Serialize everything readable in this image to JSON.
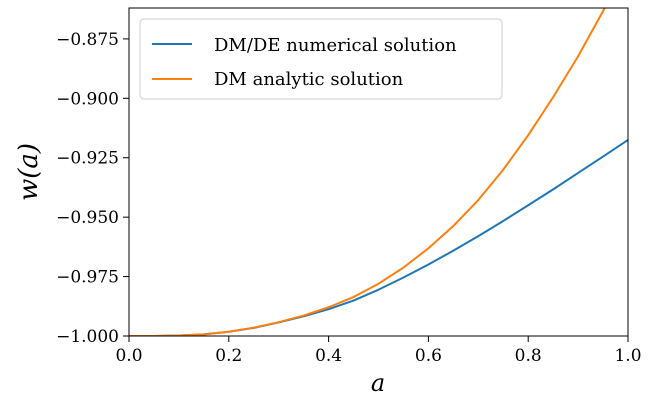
{
  "chart_data": {
    "type": "line",
    "xlabel": "a",
    "ylabel": "w(a)",
    "xlim": [
      0.0,
      1.0
    ],
    "ylim": [
      -1.0,
      -0.862
    ],
    "xticks": [
      "0.0",
      "0.2",
      "0.4",
      "0.6",
      "0.8",
      "1.0"
    ],
    "yticks": [
      "−1.000",
      "−0.975",
      "−0.950",
      "−0.925",
      "−0.900",
      "−0.875"
    ],
    "grid": false,
    "legend_position": "top-left",
    "series": [
      {
        "name": "DM/DE numerical solution",
        "color": "#1f77b4",
        "x": [
          0.0,
          0.05,
          0.1,
          0.15,
          0.2,
          0.25,
          0.3,
          0.35,
          0.4,
          0.45,
          0.5,
          0.55,
          0.6,
          0.65,
          0.7,
          0.75,
          0.8,
          0.85,
          0.9,
          0.95,
          1.0
        ],
        "y": [
          -1.0,
          -1.0,
          -0.9998,
          -0.9993,
          -0.9982,
          -0.9966,
          -0.9943,
          -0.9917,
          -0.9887,
          -0.9851,
          -0.9805,
          -0.9754,
          -0.9699,
          -0.9641,
          -0.958,
          -0.9516,
          -0.945,
          -0.9383,
          -0.9314,
          -0.9245,
          -0.9175
        ]
      },
      {
        "name": "DM analytic solution",
        "color": "#ff7f0e",
        "x": [
          0.0,
          0.05,
          0.1,
          0.15,
          0.2,
          0.25,
          0.3,
          0.35,
          0.4,
          0.45,
          0.5,
          0.55,
          0.6,
          0.65,
          0.7,
          0.75,
          0.8,
          0.85,
          0.9,
          0.95,
          1.0
        ],
        "y": [
          -1.0,
          -1.0,
          -0.9998,
          -0.9993,
          -0.9982,
          -0.9965,
          -0.9942,
          -0.9914,
          -0.9879,
          -0.9836,
          -0.978,
          -0.9712,
          -0.9631,
          -0.9537,
          -0.9428,
          -0.93,
          -0.9155,
          -0.8995,
          -0.8823,
          -0.8633,
          -0.8423
        ]
      }
    ]
  }
}
